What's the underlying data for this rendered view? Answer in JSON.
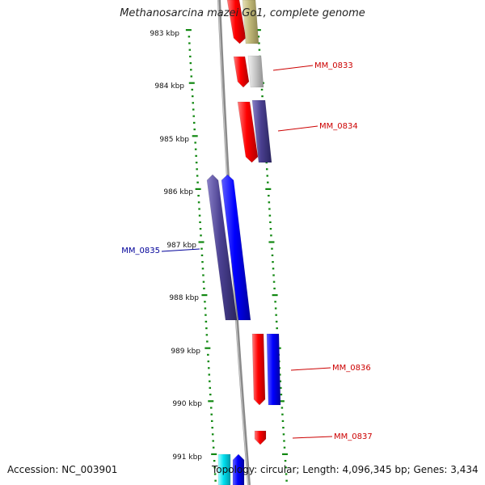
{
  "title": "Methanosarcina mazei Go1, complete genome",
  "footer": {
    "accession": "Accession: NC_003901",
    "topology": "Topology: circular; Length: 4,096,345 bp; Genes: 3,434"
  },
  "scale": {
    "unit": "kbp",
    "ticks": [
      "983 kbp",
      "984 kbp",
      "985 kbp",
      "986 kbp",
      "987 kbp",
      "988 kbp",
      "989 kbp",
      "990 kbp",
      "991 kbp"
    ]
  },
  "colors": {
    "red": "#ff0000",
    "blue": "#0000ff",
    "navy": "#4a4090",
    "olive": "#c0b878",
    "grey": "#bcbcbc",
    "cyan": "#00e0f0",
    "label_red": "#cc0000",
    "label_blue": "#000099",
    "tick_green": "#118811",
    "backbone": "#8a8a8a"
  },
  "gene_labels": [
    {
      "text": "MM_0833",
      "color": "label_red"
    },
    {
      "text": "MM_0834",
      "color": "label_red"
    },
    {
      "text": "MM_0835",
      "color": "label_blue"
    },
    {
      "text": "MM_0836",
      "color": "label_red"
    },
    {
      "text": "MM_0837",
      "color": "label_red"
    }
  ]
}
